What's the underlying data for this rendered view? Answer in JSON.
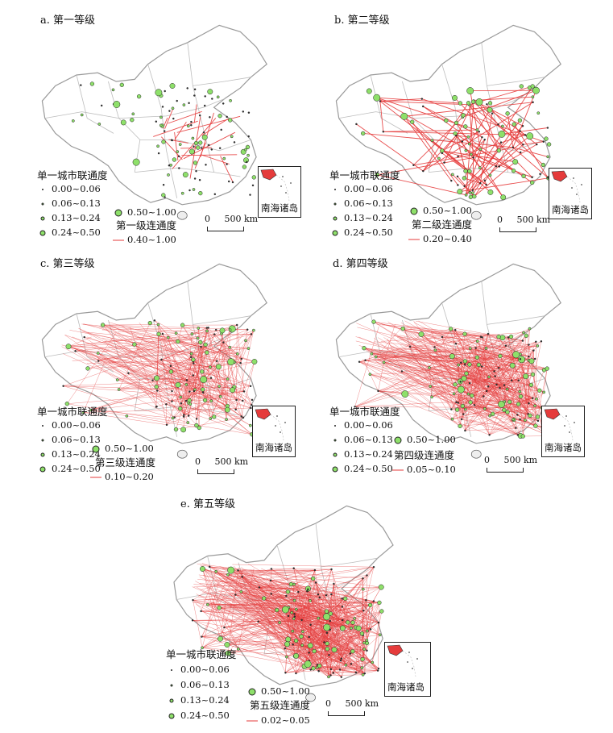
{
  "legend_title": "单一城市联通度",
  "node_classes": [
    "0.00~0.06",
    "0.06~0.13",
    "0.13~0.24",
    "0.24~0.50",
    "0.50~1.00"
  ],
  "inset_label": "南海诸岛",
  "scale": {
    "zero": "0",
    "value": "500 km"
  },
  "colors": {
    "node_fill": "#8ee06a",
    "link": "#e53b3b",
    "boundary": "#9a9a9a"
  },
  "panels": [
    {
      "title": "a. 第一等级",
      "level_label": "第一级连通度",
      "level_range": "0.40~1.00",
      "link_density": 20,
      "node_density": 1.0
    },
    {
      "title": "b. 第二等级",
      "level_label": "第二级连通度",
      "level_range": "0.20~0.40",
      "link_density": 90,
      "node_density": 1.0
    },
    {
      "title": "c. 第三等级",
      "level_label": "第三级连通度",
      "level_range": "0.10~0.20",
      "link_density": 320,
      "node_density": 1.2
    },
    {
      "title": "d. 第四等级",
      "level_label": "第四级连通度",
      "level_range": "0.05~0.10",
      "link_density": 520,
      "node_density": 1.3
    },
    {
      "title": "e. 第五等级",
      "level_label": "第五级连通度",
      "level_range": "0.02~0.05",
      "link_density": 700,
      "node_density": 1.4
    }
  ]
}
